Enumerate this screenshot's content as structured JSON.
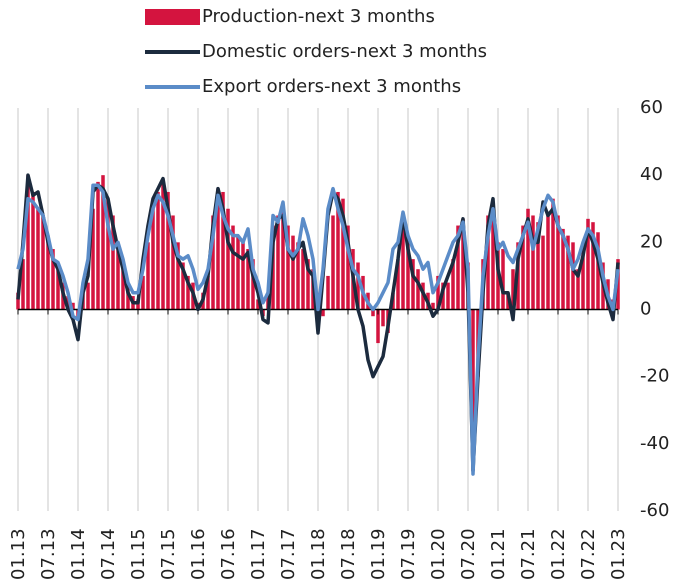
{
  "chart_data": {
    "type": "combo",
    "categories": [
      "01.13",
      null,
      null,
      null,
      null,
      null,
      "07.13",
      null,
      null,
      null,
      null,
      null,
      "01.14",
      null,
      null,
      null,
      null,
      null,
      "07.14",
      null,
      null,
      null,
      null,
      null,
      "01.15",
      null,
      null,
      null,
      null,
      null,
      "07.15",
      null,
      null,
      null,
      null,
      null,
      "01.16",
      null,
      null,
      null,
      null,
      null,
      "07.16",
      null,
      null,
      null,
      null,
      null,
      "01.17",
      null,
      null,
      null,
      null,
      null,
      "07.17",
      null,
      null,
      null,
      null,
      null,
      "01.18",
      null,
      null,
      null,
      null,
      null,
      "07.18",
      null,
      null,
      null,
      null,
      null,
      "01.19",
      null,
      null,
      null,
      null,
      null,
      "07.19",
      null,
      null,
      null,
      null,
      null,
      "01.20",
      null,
      null,
      null,
      null,
      null,
      "07.20",
      null,
      null,
      null,
      null,
      null,
      "01.21",
      null,
      null,
      null,
      null,
      null,
      "07.21",
      null,
      null,
      null,
      null,
      null,
      "01.22",
      null,
      null,
      null,
      null,
      null,
      "07.22",
      null,
      null,
      null,
      null,
      null,
      "01.23"
    ],
    "series": [
      {
        "name": "Production-next 3 months",
        "type": "bar",
        "color": "#d4143f",
        "values": [
          5,
          15,
          40,
          35,
          30,
          28,
          22,
          18,
          12,
          8,
          4,
          2,
          -3,
          5,
          8,
          30,
          38,
          40,
          33,
          28,
          20,
          12,
          8,
          4,
          3,
          10,
          20,
          30,
          35,
          38,
          35,
          28,
          20,
          14,
          10,
          8,
          2,
          5,
          10,
          28,
          36,
          35,
          30,
          25,
          22,
          20,
          18,
          15,
          3,
          -2,
          5,
          25,
          28,
          30,
          25,
          22,
          20,
          18,
          15,
          12,
          5,
          -2,
          10,
          28,
          35,
          33,
          25,
          18,
          14,
          10,
          5,
          -2,
          -10,
          -5,
          -7,
          5,
          15,
          25,
          20,
          15,
          12,
          8,
          5,
          2,
          10,
          8,
          8,
          15,
          25,
          27,
          14,
          -48,
          -20,
          15,
          28,
          30,
          20,
          18,
          5,
          12,
          20,
          25,
          30,
          28,
          26,
          22,
          28,
          33,
          28,
          24,
          22,
          20,
          12,
          18,
          27,
          26,
          23,
          14,
          9,
          3,
          15
        ]
      },
      {
        "name": "Domestic orders-next 3 months",
        "type": "line",
        "color": "#1c2b3e",
        "values": [
          3,
          20,
          40,
          34,
          35,
          28,
          20,
          15,
          12,
          5,
          0,
          -3,
          -9,
          5,
          10,
          35,
          37,
          36,
          33,
          25,
          18,
          12,
          5,
          2,
          2,
          15,
          25,
          33,
          36,
          39,
          30,
          20,
          15,
          12,
          8,
          5,
          0,
          3,
          10,
          25,
          36,
          30,
          20,
          17,
          16,
          15,
          17,
          10,
          5,
          -3,
          -4,
          20,
          27,
          28,
          18,
          15,
          18,
          20,
          12,
          10,
          -7,
          10,
          28,
          35,
          33,
          28,
          20,
          10,
          0,
          -5,
          -15,
          -20,
          -17,
          -14,
          -5,
          5,
          15,
          28,
          18,
          10,
          8,
          5,
          2,
          -2,
          0,
          6,
          10,
          14,
          20,
          27,
          5,
          -48,
          -20,
          5,
          25,
          33,
          12,
          5,
          5,
          -3,
          15,
          22,
          27,
          20,
          20,
          32,
          28,
          30,
          25,
          22,
          18,
          12,
          10,
          16,
          24,
          20,
          15,
          8,
          2,
          -3,
          14
        ]
      },
      {
        "name": "Export orders-next 3 months",
        "type": "line",
        "color": "#5b8cc8",
        "values": [
          12,
          18,
          33,
          32,
          30,
          28,
          22,
          15,
          14,
          10,
          5,
          -2,
          -3,
          8,
          15,
          37,
          37,
          35,
          25,
          18,
          20,
          15,
          8,
          5,
          5,
          12,
          22,
          30,
          34,
          32,
          28,
          22,
          16,
          15,
          16,
          12,
          6,
          8,
          12,
          22,
          34,
          28,
          24,
          22,
          22,
          20,
          24,
          12,
          8,
          2,
          5,
          28,
          26,
          32,
          18,
          16,
          18,
          27,
          22,
          15,
          0,
          12,
          30,
          36,
          30,
          25,
          18,
          12,
          10,
          5,
          2,
          0,
          2,
          5,
          8,
          18,
          20,
          29,
          22,
          18,
          16,
          12,
          14,
          5,
          8,
          12,
          16,
          20,
          22,
          26,
          12,
          -49,
          -15,
          10,
          22,
          30,
          18,
          20,
          16,
          14,
          18,
          22,
          26,
          18,
          24,
          30,
          34,
          32,
          25,
          22,
          18,
          12,
          15,
          20,
          24,
          22,
          18,
          10,
          4,
          0,
          12
        ]
      }
    ],
    "ylim": [
      -60,
      60
    ],
    "yticks": [
      -60,
      -40,
      -20,
      0,
      20,
      40,
      60
    ],
    "grid": true
  }
}
